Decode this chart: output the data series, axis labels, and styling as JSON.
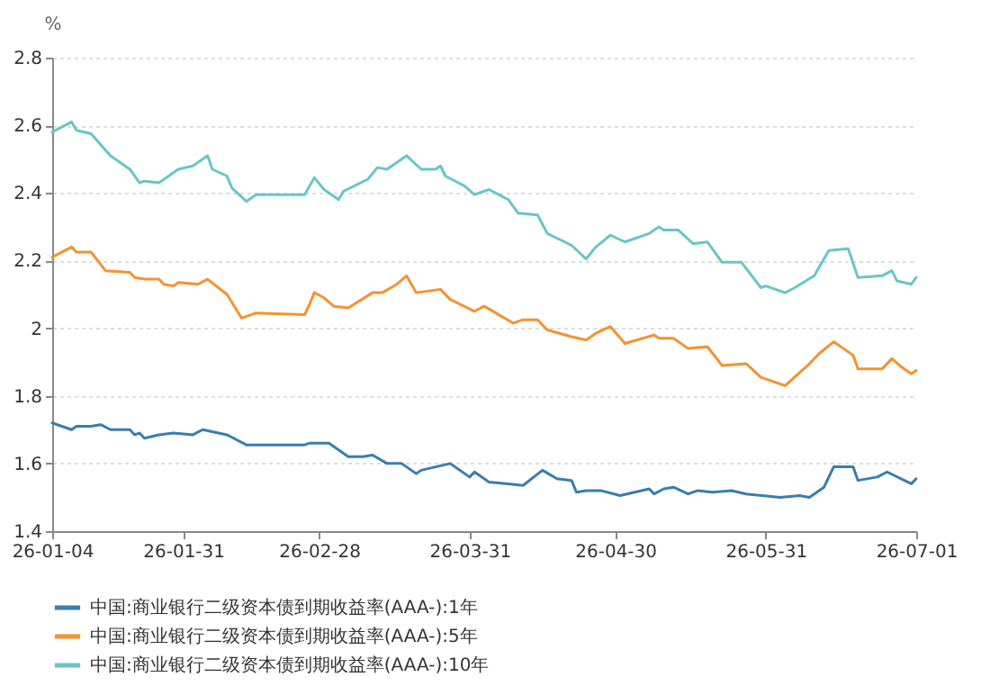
{
  "chart_data": {
    "type": "line",
    "ylabel": "%",
    "ylim": [
      1.4,
      2.8
    ],
    "yticks": [
      1.4,
      1.6,
      1.8,
      2,
      2.2,
      2.4,
      2.6,
      2.8
    ],
    "xlim": [
      "--01-04",
      "--07-01"
    ],
    "xticks": [
      {
        "value": "--01-04",
        "label": "26-01-04"
      },
      {
        "value": "--01-31",
        "label": "26-01-31"
      },
      {
        "value": "--02-28",
        "label": "26-02-28"
      },
      {
        "value": "--03-31",
        "label": "26-03-31"
      },
      {
        "value": "--04-30",
        "label": "26-04-30"
      },
      {
        "value": "--05-31",
        "label": "26-05-31"
      },
      {
        "value": "--07-01",
        "label": "26-07-01"
      }
    ],
    "grid": "y",
    "legend": "bottom",
    "series": [
      {
        "name": "中国:商业银行二级资本债到期收益率(AAA-):1年",
        "color": "#3a7dad",
        "x": [
          "--01-04",
          "--01-08",
          "--01-09",
          "--01-12",
          "--01-14",
          "--01-16",
          "--01-20",
          "--01-21",
          "--01-22",
          "--01-23",
          "--01-26",
          "--01-29",
          "--02-02",
          "--02-04",
          "--02-09",
          "--02-13",
          "--02-25",
          "--02-26",
          "--03-02",
          "--03-06",
          "--03-09",
          "--03-11",
          "--03-14",
          "--03-17",
          "--03-20",
          "--03-21",
          "--03-27",
          "--03-31",
          "--04-01",
          "--04-04",
          "--04-08",
          "--04-11",
          "--04-15",
          "--04-18",
          "--04-21",
          "--04-22",
          "--04-24",
          "--04-27",
          "--05-01",
          "--05-07",
          "--05-08",
          "--05-10",
          "--05-12",
          "--05-15",
          "--05-17",
          "--05-20",
          "--05-24",
          "--05-27",
          "--06-03",
          "--06-07",
          "--06-09",
          "--06-12",
          "--06-14",
          "--06-18",
          "--06-19",
          "--06-23",
          "--06-25",
          "--06-30",
          "--07-01"
        ],
        "values": [
          1.72,
          1.7,
          1.71,
          1.71,
          1.715,
          1.7,
          1.7,
          1.685,
          1.69,
          1.675,
          1.685,
          1.69,
          1.685,
          1.7,
          1.685,
          1.655,
          1.655,
          1.66,
          1.66,
          1.62,
          1.62,
          1.625,
          1.6,
          1.6,
          1.57,
          1.58,
          1.6,
          1.56,
          1.575,
          1.545,
          1.54,
          1.535,
          1.58,
          1.555,
          1.55,
          1.515,
          1.52,
          1.52,
          1.505,
          1.525,
          1.51,
          1.525,
          1.53,
          1.51,
          1.52,
          1.515,
          1.52,
          1.51,
          1.5,
          1.505,
          1.5,
          1.53,
          1.59,
          1.59,
          1.55,
          1.56,
          1.575,
          1.54,
          1.555
        ]
      },
      {
        "name": "中国:商业银行二级资本债到期收益率(AAA-):5年",
        "color": "#f5922f",
        "x": [
          "--01-04",
          "--01-08",
          "--01-09",
          "--01-12",
          "--01-15",
          "--01-20",
          "--01-21",
          "--01-23",
          "--01-26",
          "--01-27",
          "--01-29",
          "--01-30",
          "--02-03",
          "--02-05",
          "--02-09",
          "--02-12",
          "--02-15",
          "--02-25",
          "--02-26",
          "--02-27",
          "--03-01",
          "--03-03",
          "--03-06",
          "--03-11",
          "--03-13",
          "--03-16",
          "--03-18",
          "--03-20",
          "--03-25",
          "--03-27",
          "--04-01",
          "--04-03",
          "--04-09",
          "--04-11",
          "--04-14",
          "--04-16",
          "--04-21",
          "--04-24",
          "--04-26",
          "--04-29",
          "--05-02",
          "--05-08",
          "--05-09",
          "--05-12",
          "--05-15",
          "--05-19",
          "--05-22",
          "--05-27",
          "--05-30",
          "--06-04",
          "--06-09",
          "--06-11",
          "--06-14",
          "--06-18",
          "--06-19",
          "--06-24",
          "--06-26",
          "--06-28",
          "--06-30",
          "--07-01"
        ],
        "values": [
          2.21,
          2.24,
          2.225,
          2.225,
          2.17,
          2.165,
          2.15,
          2.145,
          2.145,
          2.13,
          2.125,
          2.135,
          2.13,
          2.145,
          2.1,
          2.03,
          2.045,
          2.04,
          2.07,
          2.105,
          2.09,
          2.065,
          2.06,
          2.105,
          2.105,
          2.13,
          2.155,
          2.105,
          2.115,
          2.085,
          2.05,
          2.065,
          2.015,
          2.025,
          2.025,
          1.995,
          1.975,
          1.965,
          1.985,
          2.005,
          1.955,
          1.98,
          1.97,
          1.97,
          1.94,
          1.945,
          1.89,
          1.895,
          1.855,
          1.83,
          1.895,
          1.925,
          1.96,
          1.92,
          1.88,
          1.88,
          1.91,
          1.885,
          1.865,
          1.875
        ]
      },
      {
        "name": "中国:商业银行二级资本债到期收益率(AAA-):10年",
        "color": "#6ac5c8",
        "x": [
          "--01-04",
          "--01-08",
          "--01-09",
          "--01-12",
          "--01-16",
          "--01-20",
          "--01-22",
          "--01-23",
          "--01-26",
          "--01-30",
          "--02-02",
          "--02-05",
          "--02-06",
          "--02-09",
          "--02-10",
          "--02-13",
          "--02-15",
          "--02-25",
          "--02-27",
          "--03-01",
          "--03-04",
          "--03-05",
          "--03-10",
          "--03-12",
          "--03-14",
          "--03-18",
          "--03-21",
          "--03-24",
          "--03-25",
          "--03-26",
          "--03-30",
          "--04-01",
          "--04-04",
          "--04-08",
          "--04-10",
          "--04-14",
          "--04-16",
          "--04-21",
          "--04-24",
          "--04-26",
          "--04-29",
          "--05-02",
          "--05-07",
          "--05-09",
          "--05-10",
          "--05-13",
          "--05-16",
          "--05-19",
          "--05-22",
          "--05-26",
          "--05-30",
          "--05-31",
          "--06-04",
          "--06-06",
          "--06-10",
          "--06-13",
          "--06-17",
          "--06-19",
          "--06-24",
          "--06-26",
          "--06-27",
          "--06-30",
          "--07-01"
        ],
        "values": [
          2.58,
          2.61,
          2.585,
          2.575,
          2.51,
          2.47,
          2.43,
          2.435,
          2.43,
          2.47,
          2.48,
          2.51,
          2.47,
          2.45,
          2.415,
          2.375,
          2.395,
          2.395,
          2.445,
          2.41,
          2.38,
          2.405,
          2.44,
          2.475,
          2.47,
          2.51,
          2.47,
          2.47,
          2.48,
          2.45,
          2.42,
          2.395,
          2.41,
          2.38,
          2.34,
          2.335,
          2.28,
          2.245,
          2.205,
          2.24,
          2.275,
          2.255,
          2.28,
          2.3,
          2.29,
          2.29,
          2.25,
          2.255,
          2.195,
          2.195,
          2.12,
          2.125,
          2.105,
          2.12,
          2.155,
          2.23,
          2.235,
          2.15,
          2.155,
          2.17,
          2.14,
          2.13,
          2.15
        ]
      }
    ]
  }
}
